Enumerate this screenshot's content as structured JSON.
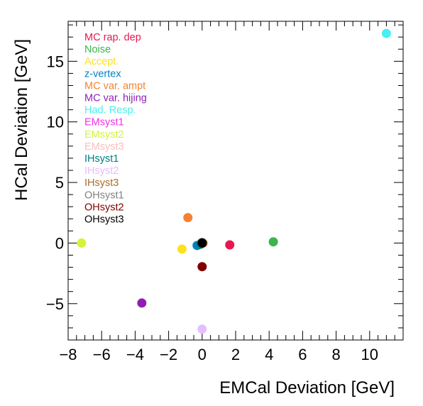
{
  "chart_data": {
    "type": "scatter",
    "title": "",
    "xlabel": "EMCal Deviation [GeV]",
    "ylabel": "HCal Deviation [GeV]",
    "xlim": [
      -8,
      12
    ],
    "ylim": [
      -8,
      18.3
    ],
    "x_ticks": [
      -8,
      -6,
      -4,
      -2,
      0,
      2,
      4,
      6,
      8,
      10
    ],
    "y_ticks": [
      -5,
      0,
      5,
      10,
      15
    ],
    "grid": false,
    "legend_position": "top-left",
    "series": [
      {
        "name": "MC rap. dep",
        "color": "#e8174f",
        "x": 1.65,
        "y": -0.15
      },
      {
        "name": "Noise",
        "color": "#3cb44b",
        "x": 4.25,
        "y": 0.1
      },
      {
        "name": "Accept.",
        "color": "#ffe119",
        "x": -1.2,
        "y": -0.5
      },
      {
        "name": "z-vertex",
        "color": "#0082c8",
        "x": -0.3,
        "y": -0.2
      },
      {
        "name": "MC var. ampt",
        "color": "#f58231",
        "x": -0.85,
        "y": 2.1
      },
      {
        "name": "MC var. hijing",
        "color": "#911eb4",
        "x": -3.6,
        "y": -4.95
      },
      {
        "name": "Had. Resp.",
        "color": "#46f0f0",
        "x": 11.0,
        "y": 17.3
      },
      {
        "name": "EMsyst1",
        "color": "#f032e6",
        "x": -0.05,
        "y": 0.0
      },
      {
        "name": "EMsyst2",
        "color": "#d2f53c",
        "x": -7.2,
        "y": 0.0
      },
      {
        "name": "EMsyst3",
        "color": "#fabebe",
        "x": -0.05,
        "y": 0.05
      },
      {
        "name": "IHsyst1",
        "color": "#008080",
        "x": -0.1,
        "y": -0.1
      },
      {
        "name": "IHsyst2",
        "color": "#e6beff",
        "x": 0.0,
        "y": -7.1
      },
      {
        "name": "IHsyst3",
        "color": "#aa6e28",
        "x": 0.05,
        "y": 0.0
      },
      {
        "name": "OHsyst1",
        "color": "#808080",
        "x": 0.0,
        "y": 0.05
      },
      {
        "name": "OHsyst2",
        "color": "#800000",
        "x": 0.0,
        "y": -1.95
      },
      {
        "name": "OHsyst3",
        "color": "#000000",
        "x": 0.0,
        "y": 0.0
      }
    ]
  }
}
